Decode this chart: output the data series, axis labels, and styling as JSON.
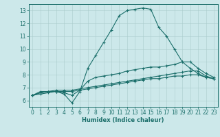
{
  "xlabel": "Humidex (Indice chaleur)",
  "ylabel": "",
  "bg_color": "#cce8ea",
  "line_color": "#1a6e6a",
  "xlim": [
    -0.5,
    23.5
  ],
  "ylim": [
    5.5,
    13.5
  ],
  "xticks": [
    0,
    1,
    2,
    3,
    4,
    5,
    6,
    7,
    8,
    9,
    10,
    11,
    12,
    13,
    14,
    15,
    16,
    17,
    18,
    19,
    20,
    21,
    22,
    23
  ],
  "yticks": [
    6,
    7,
    8,
    9,
    10,
    11,
    12,
    13
  ],
  "line1_x": [
    0,
    1,
    2,
    3,
    4,
    5,
    6,
    7,
    8,
    9,
    10,
    11,
    12,
    13,
    14,
    15,
    16,
    17,
    18,
    19,
    20,
    21,
    22,
    23
  ],
  "line1_y": [
    6.4,
    6.7,
    6.7,
    6.7,
    6.5,
    5.8,
    6.7,
    8.5,
    9.5,
    10.5,
    11.5,
    12.6,
    13.0,
    13.1,
    13.2,
    13.1,
    11.7,
    11.0,
    10.0,
    9.0,
    8.5,
    8.1,
    7.8,
    7.7
  ],
  "line2_x": [
    0,
    1,
    2,
    3,
    4,
    5,
    6,
    7,
    8,
    9,
    10,
    11,
    12,
    13,
    14,
    15,
    16,
    17,
    18,
    19,
    20,
    21,
    22,
    23
  ],
  "line2_y": [
    6.4,
    6.6,
    6.7,
    6.7,
    6.6,
    6.4,
    6.8,
    7.5,
    7.8,
    7.9,
    8.0,
    8.1,
    8.3,
    8.4,
    8.5,
    8.6,
    8.6,
    8.7,
    8.8,
    9.0,
    9.0,
    8.5,
    8.1,
    7.8
  ],
  "line3_x": [
    0,
    1,
    2,
    3,
    4,
    5,
    6,
    7,
    8,
    9,
    10,
    11,
    12,
    13,
    14,
    15,
    16,
    17,
    18,
    19,
    20,
    21,
    22,
    23
  ],
  "line3_y": [
    6.4,
    6.6,
    6.7,
    6.8,
    6.8,
    6.8,
    6.9,
    7.0,
    7.1,
    7.2,
    7.3,
    7.4,
    7.5,
    7.6,
    7.7,
    7.8,
    7.9,
    8.0,
    8.1,
    8.2,
    8.3,
    8.3,
    7.9,
    7.7
  ],
  "line4_x": [
    0,
    1,
    2,
    3,
    4,
    5,
    6,
    7,
    8,
    9,
    10,
    11,
    12,
    13,
    14,
    15,
    16,
    17,
    18,
    19,
    20,
    21,
    22,
    23
  ],
  "line4_y": [
    6.4,
    6.5,
    6.6,
    6.7,
    6.7,
    6.7,
    6.8,
    6.9,
    7.0,
    7.1,
    7.2,
    7.3,
    7.4,
    7.5,
    7.6,
    7.7,
    7.7,
    7.8,
    7.9,
    7.9,
    8.0,
    8.0,
    7.8,
    7.7
  ],
  "tick_fontsize": 5.5,
  "xlabel_fontsize": 6.0,
  "grid_major_color": "#aacccc",
  "grid_minor_color": "#bbdddd",
  "spine_color": "#1a6e6a"
}
